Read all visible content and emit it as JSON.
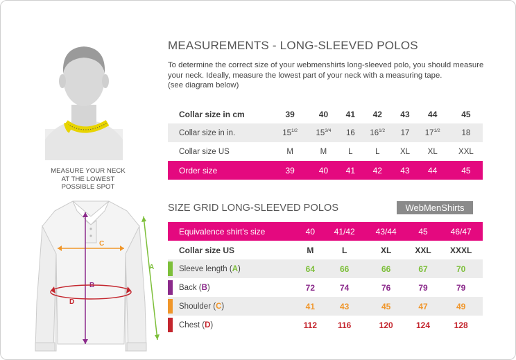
{
  "colors": {
    "pink": "#e4097f",
    "green": "#7dbf3a",
    "purple": "#8b2a8b",
    "orange": "#f0962a",
    "red": "#c4262e",
    "badge": "#8a8a8a"
  },
  "caption": [
    "MEASURE YOUR NECK",
    "AT THE LOWEST",
    "POSSIBLE SPOT"
  ],
  "shirt_labels": {
    "a": "A",
    "b": "B",
    "c": "C",
    "d": "D"
  },
  "heading": "MEASUREMENTS - LONG-SLEEVED POLOS",
  "intro": [
    "To determine the correct size of your webmenshirts long-sleeved polo, you should measure",
    "your neck. Ideally, measure the lowest part of your neck with a measuring tape.",
    "(see diagram below)"
  ],
  "collar_table": {
    "header_label": "Collar size in cm",
    "header_values": [
      "39",
      "40",
      "41",
      "42",
      "43",
      "44",
      "45"
    ],
    "inches_label": "Collar size in in.",
    "inches_values": [
      {
        "whole": "15",
        "frac": "1/2"
      },
      {
        "whole": "15",
        "frac": "3/4"
      },
      {
        "whole": "16",
        "frac": ""
      },
      {
        "whole": "16",
        "frac": "1/2"
      },
      {
        "whole": "17",
        "frac": ""
      },
      {
        "whole": "17",
        "frac": "1/2"
      },
      {
        "whole": "18",
        "frac": ""
      }
    ],
    "us_label": "Collar size US",
    "us_values": [
      "M",
      "M",
      "L",
      "L",
      "XL",
      "XL",
      "XXL"
    ],
    "order_label": "Order size",
    "order_values": [
      "39",
      "40",
      "41",
      "42",
      "43",
      "44",
      "45"
    ]
  },
  "grid_heading": "SIZE GRID LONG-SLEEVED POLOS",
  "brand": "WebMenShirts",
  "size_grid": {
    "equiv_label": "Equivalence shirt's size",
    "equiv_values": [
      "40",
      "41/42",
      "43/44",
      "45",
      "46/47"
    ],
    "us_label": "Collar size US",
    "us_values": [
      "M",
      "L",
      "XL",
      "XXL",
      "XXXL"
    ],
    "rows": [
      {
        "label": "Sleeve length (",
        "letter": "A",
        "close": ")",
        "color": "#7dbf3a",
        "values": [
          "64",
          "66",
          "66",
          "67",
          "70"
        ]
      },
      {
        "label": "Back (",
        "letter": "B",
        "close": ")",
        "color": "#8b2a8b",
        "values": [
          "72",
          "74",
          "76",
          "79",
          "79"
        ]
      },
      {
        "label": "Shoulder (",
        "letter": "C",
        "close": ")",
        "color": "#f0962a",
        "values": [
          "41",
          "43",
          "45",
          "47",
          "49"
        ]
      },
      {
        "label": "Chest (",
        "letter": "D",
        "close": ")",
        "color": "#c4262e",
        "values": [
          "112",
          "116",
          "120",
          "124",
          "128"
        ]
      }
    ]
  }
}
